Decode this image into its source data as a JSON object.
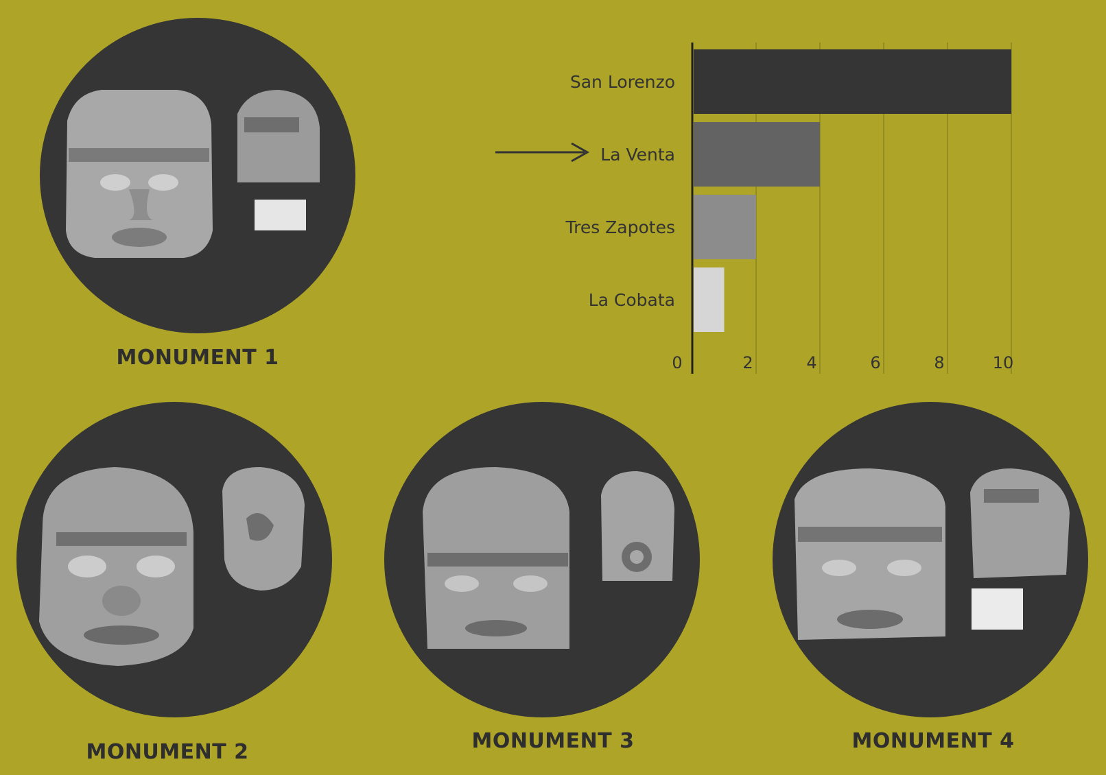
{
  "chart_data": {
    "type": "bar",
    "orientation": "horizontal",
    "categories": [
      "San Lorenzo",
      "La Venta",
      "Tres Zapotes",
      "La Cobata"
    ],
    "values": [
      10,
      4,
      2,
      1
    ],
    "bar_colors": [
      "#353535",
      "#636363",
      "#8c8c8c",
      "#d6d6d6"
    ],
    "xticks": [
      "0",
      "2",
      "4",
      "6",
      "8",
      "10"
    ],
    "xlim": [
      0,
      10
    ],
    "highlighted_category": "La Venta",
    "grid": true
  },
  "monuments": [
    {
      "label": "MONUMENT 1"
    },
    {
      "label": "MONUMENT 2"
    },
    {
      "label": "MONUMENT 3"
    },
    {
      "label": "MONUMENT 4"
    }
  ],
  "colors": {
    "background": "#ada428",
    "circle": "#353535",
    "text": "#2e2e2e"
  }
}
